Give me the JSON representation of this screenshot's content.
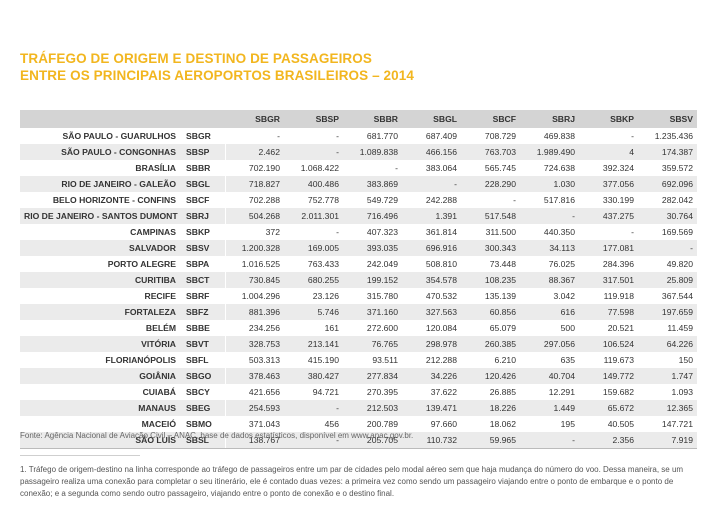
{
  "title": {
    "line1": "TRÁFEGO DE ORIGEM E DESTINO DE PASSAGEIROS",
    "line2": "ENTRE OS PRINCIPAIS AEROPORTOS BRASILEIROS – 2014"
  },
  "table": {
    "columns": [
      "SBGR",
      "SBSP",
      "SBBR",
      "SBGL",
      "SBCF",
      "SBRJ",
      "SBKP",
      "SBSV"
    ],
    "rows": [
      {
        "city": "SÃO PAULO - GUARULHOS",
        "code": "SBGR",
        "values": [
          "-",
          "-",
          "681.770",
          "687.409",
          "708.729",
          "469.838",
          "-",
          "1.235.436"
        ]
      },
      {
        "city": "SÃO PAULO - CONGONHAS",
        "code": "SBSP",
        "values": [
          "2.462",
          "-",
          "1.089.838",
          "466.156",
          "763.703",
          "1.989.490",
          "4",
          "174.387"
        ]
      },
      {
        "city": "BRASÍLIA",
        "code": "SBBR",
        "values": [
          "702.190",
          "1.068.422",
          "-",
          "383.064",
          "565.745",
          "724.638",
          "392.324",
          "359.572"
        ]
      },
      {
        "city": "RIO DE JANEIRO - GALEÃO",
        "code": "SBGL",
        "values": [
          "718.827",
          "400.486",
          "383.869",
          "-",
          "228.290",
          "1.030",
          "377.056",
          "692.096"
        ]
      },
      {
        "city": "BELO HORIZONTE - CONFINS",
        "code": "SBCF",
        "values": [
          "702.288",
          "752.778",
          "549.729",
          "242.288",
          "-",
          "517.816",
          "330.199",
          "282.042"
        ]
      },
      {
        "city": "RIO DE JANEIRO - SANTOS DUMONT",
        "code": "SBRJ",
        "values": [
          "504.268",
          "2.011.301",
          "716.496",
          "1.391",
          "517.548",
          "-",
          "437.275",
          "30.764"
        ]
      },
      {
        "city": "CAMPINAS",
        "code": "SBKP",
        "values": [
          "372",
          "-",
          "407.323",
          "361.814",
          "311.500",
          "440.350",
          "-",
          "169.569"
        ]
      },
      {
        "city": "SALVADOR",
        "code": "SBSV",
        "values": [
          "1.200.328",
          "169.005",
          "393.035",
          "696.916",
          "300.343",
          "34.113",
          "177.081",
          "-"
        ]
      },
      {
        "city": "PORTO ALEGRE",
        "code": "SBPA",
        "values": [
          "1.016.525",
          "763.433",
          "242.049",
          "508.810",
          "73.448",
          "76.025",
          "284.396",
          "49.820"
        ]
      },
      {
        "city": "CURITIBA",
        "code": "SBCT",
        "values": [
          "730.845",
          "680.255",
          "199.152",
          "354.578",
          "108.235",
          "88.367",
          "317.501",
          "25.809"
        ]
      },
      {
        "city": "RECIFE",
        "code": "SBRF",
        "values": [
          "1.004.296",
          "23.126",
          "315.780",
          "470.532",
          "135.139",
          "3.042",
          "119.918",
          "367.544"
        ]
      },
      {
        "city": "FORTALEZA",
        "code": "SBFZ",
        "values": [
          "881.396",
          "5.746",
          "371.160",
          "327.563",
          "60.856",
          "616",
          "77.598",
          "197.659"
        ]
      },
      {
        "city": "BELÉM",
        "code": "SBBE",
        "values": [
          "234.256",
          "161",
          "272.600",
          "120.084",
          "65.079",
          "500",
          "20.521",
          "11.459"
        ]
      },
      {
        "city": "VITÓRIA",
        "code": "SBVT",
        "values": [
          "328.753",
          "213.141",
          "76.765",
          "298.978",
          "260.385",
          "297.056",
          "106.524",
          "64.226"
        ]
      },
      {
        "city": "FLORIANÓPOLIS",
        "code": "SBFL",
        "values": [
          "503.313",
          "415.190",
          "93.511",
          "212.288",
          "6.210",
          "635",
          "119.673",
          "150"
        ]
      },
      {
        "city": "GOIÂNIA",
        "code": "SBGO",
        "values": [
          "378.463",
          "380.427",
          "277.834",
          "34.226",
          "120.426",
          "40.704",
          "149.772",
          "1.747"
        ]
      },
      {
        "city": "CUIABÁ",
        "code": "SBCY",
        "values": [
          "421.656",
          "94.721",
          "270.395",
          "37.622",
          "26.885",
          "12.291",
          "159.682",
          "1.093"
        ]
      },
      {
        "city": "MANAUS",
        "code": "SBEG",
        "values": [
          "254.593",
          "-",
          "212.503",
          "139.471",
          "18.226",
          "1.449",
          "65.672",
          "12.365"
        ]
      },
      {
        "city": "MACEIÓ",
        "code": "SBMO",
        "values": [
          "371.043",
          "456",
          "200.789",
          "97.660",
          "18.062",
          "195",
          "40.505",
          "147.721"
        ]
      },
      {
        "city": "SÃO LUÍS",
        "code": "SBSL",
        "values": [
          "138.767",
          "-",
          "205.705",
          "110.732",
          "59.965",
          "-",
          "2.356",
          "7.919"
        ]
      }
    ]
  },
  "source": "Fonte: Agência Nacional de Aviação Civil – ANAC, base de dados estatísticos, disponível em www.anac.gov.br.",
  "footnote": "1. Tráfego de origem-destino na linha corresponde ao tráfego de passageiros entre um par de cidades pelo modal aéreo sem que haja mudança do número do voo. Dessa maneira, se um passageiro realiza uma conexão para completar o seu itinerário, ele é contado duas vezes: a primeira vez como sendo um passageiro viajando entre o ponto de embarque e o ponto de conexão; e a segunda como sendo outro passageiro, viajando entre o ponto de conexão e o destino final.",
  "colors": {
    "title": "#f2b61f",
    "header_bg": "#d4d4d4",
    "stripe_bg": "#ebebeb"
  }
}
